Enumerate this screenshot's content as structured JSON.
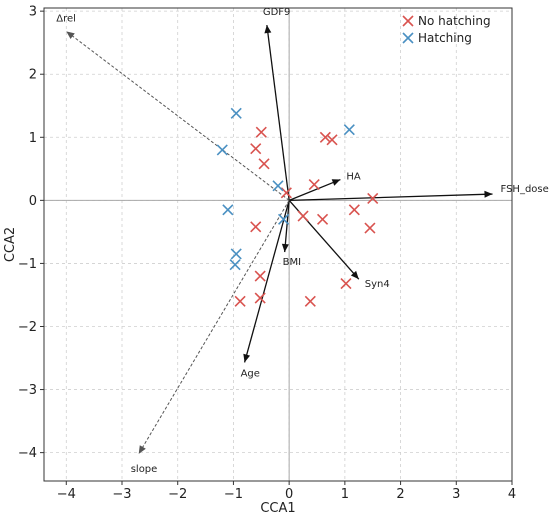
{
  "chart_data": {
    "type": "scatter",
    "title": "",
    "xlabel": "CCA1",
    "ylabel": "CCA2",
    "xlim": [
      -4.4,
      4.0
    ],
    "ylim": [
      -4.45,
      3.05
    ],
    "xticks": [
      -4,
      -3,
      -2,
      -1,
      0,
      1,
      2,
      3,
      4
    ],
    "yticks": [
      -4,
      -3,
      -2,
      -1,
      0,
      1,
      2,
      3
    ],
    "grid": true,
    "legend_position": "top-right",
    "series": [
      {
        "name": "No hatching",
        "color": "#d9534f",
        "marker": "x",
        "points": [
          {
            "x": -0.5,
            "y": 1.08
          },
          {
            "x": -0.6,
            "y": 0.82
          },
          {
            "x": -0.45,
            "y": 0.58
          },
          {
            "x": 0.65,
            "y": 1.0
          },
          {
            "x": 0.77,
            "y": 0.96
          },
          {
            "x": -0.05,
            "y": 0.12
          },
          {
            "x": 0.45,
            "y": 0.25
          },
          {
            "x": 1.5,
            "y": 0.03
          },
          {
            "x": 1.17,
            "y": -0.15
          },
          {
            "x": 0.25,
            "y": -0.25
          },
          {
            "x": 0.6,
            "y": -0.3
          },
          {
            "x": 1.45,
            "y": -0.44
          },
          {
            "x": -0.6,
            "y": -0.42
          },
          {
            "x": -0.52,
            "y": -1.2
          },
          {
            "x": -0.52,
            "y": -1.55
          },
          {
            "x": -0.88,
            "y": -1.6
          },
          {
            "x": 0.38,
            "y": -1.6
          },
          {
            "x": 1.02,
            "y": -1.32
          }
        ]
      },
      {
        "name": "Hatching",
        "color": "#4a90c2",
        "marker": "x",
        "points": [
          {
            "x": -0.95,
            "y": 1.38
          },
          {
            "x": -1.2,
            "y": 0.8
          },
          {
            "x": 1.08,
            "y": 1.12
          },
          {
            "x": -0.2,
            "y": 0.23
          },
          {
            "x": -1.1,
            "y": -0.15
          },
          {
            "x": -0.1,
            "y": -0.3
          },
          {
            "x": -0.95,
            "y": -0.85
          },
          {
            "x": -0.97,
            "y": -1.02
          }
        ]
      }
    ],
    "vectors": [
      {
        "label": "GDF9",
        "x": -0.4,
        "y": 2.78,
        "style": "solid"
      },
      {
        "label": "HA",
        "x": 0.92,
        "y": 0.33,
        "style": "solid"
      },
      {
        "label": "FSH_dose",
        "x": 3.65,
        "y": 0.1,
        "style": "solid"
      },
      {
        "label": "BMI",
        "x": -0.08,
        "y": -0.82,
        "style": "solid"
      },
      {
        "label": "Syn4",
        "x": 1.25,
        "y": -1.25,
        "style": "solid"
      },
      {
        "label": "Age",
        "x": -0.8,
        "y": -2.57,
        "style": "solid"
      },
      {
        "label": "Δrel",
        "x": -4.0,
        "y": 2.68,
        "style": "dashed"
      },
      {
        "label": "slope",
        "x": -2.7,
        "y": -4.02,
        "style": "dashed"
      }
    ]
  }
}
